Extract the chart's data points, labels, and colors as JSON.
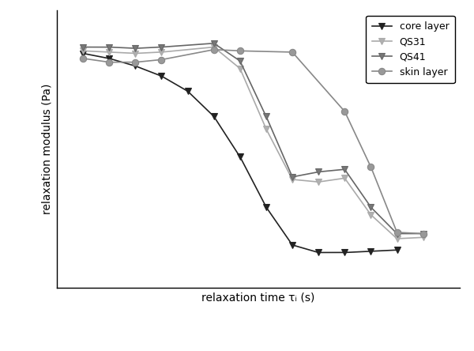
{
  "xlabel": "relaxation time τᵢ (s)",
  "ylabel": "relaxation modulus (Pa)",
  "series": [
    {
      "label": "core layer",
      "color": "#222222",
      "marker": "v",
      "markersize": 6,
      "linewidth": 1.2,
      "markerfacecolor": "#222222",
      "x": [
        -2.0,
        -1.5,
        -1.0,
        -0.5,
        0.0,
        0.5,
        1.0,
        1.5,
        2.0,
        2.5,
        3.0,
        3.5,
        4.0
      ],
      "y": [
        0.93,
        0.91,
        0.88,
        0.84,
        0.78,
        0.68,
        0.52,
        0.32,
        0.17,
        0.14,
        0.14,
        0.145,
        0.15
      ]
    },
    {
      "label": "QS31",
      "color": "#aaaaaa",
      "marker": "v",
      "markersize": 6,
      "linewidth": 1.2,
      "markerfacecolor": "#b0b0b0",
      "x": [
        -2.0,
        -1.5,
        -1.0,
        -0.5,
        0.5,
        1.0,
        1.5,
        2.0,
        2.5,
        3.0,
        3.5,
        4.0,
        4.5
      ],
      "y": [
        0.94,
        0.935,
        0.93,
        0.935,
        0.955,
        0.87,
        0.63,
        0.43,
        0.42,
        0.435,
        0.29,
        0.195,
        0.2
      ]
    },
    {
      "label": "QS41",
      "color": "#666666",
      "marker": "v",
      "markersize": 6,
      "linewidth": 1.2,
      "markerfacecolor": "#777777",
      "x": [
        -2.0,
        -1.5,
        -1.0,
        -0.5,
        0.5,
        1.0,
        1.5,
        2.0,
        2.5,
        3.0,
        3.5,
        4.0,
        4.5
      ],
      "y": [
        0.955,
        0.955,
        0.95,
        0.955,
        0.97,
        0.9,
        0.68,
        0.44,
        0.46,
        0.47,
        0.32,
        0.215,
        0.215
      ]
    },
    {
      "label": "skin layer",
      "color": "#888888",
      "marker": "o",
      "markersize": 6,
      "linewidth": 1.2,
      "markerfacecolor": "#999999",
      "x": [
        -2.0,
        -1.5,
        -1.0,
        -0.5,
        0.5,
        1.0,
        2.0,
        3.0,
        3.5,
        4.0,
        4.5
      ],
      "y": [
        0.91,
        0.895,
        0.895,
        0.905,
        0.945,
        0.94,
        0.935,
        0.7,
        0.48,
        0.22,
        0.215
      ]
    }
  ],
  "xlim": [
    -2.5,
    5.2
  ],
  "ylim": [
    0.0,
    1.1
  ],
  "figsize": [
    6.0,
    4.44
  ],
  "dpi": 100
}
